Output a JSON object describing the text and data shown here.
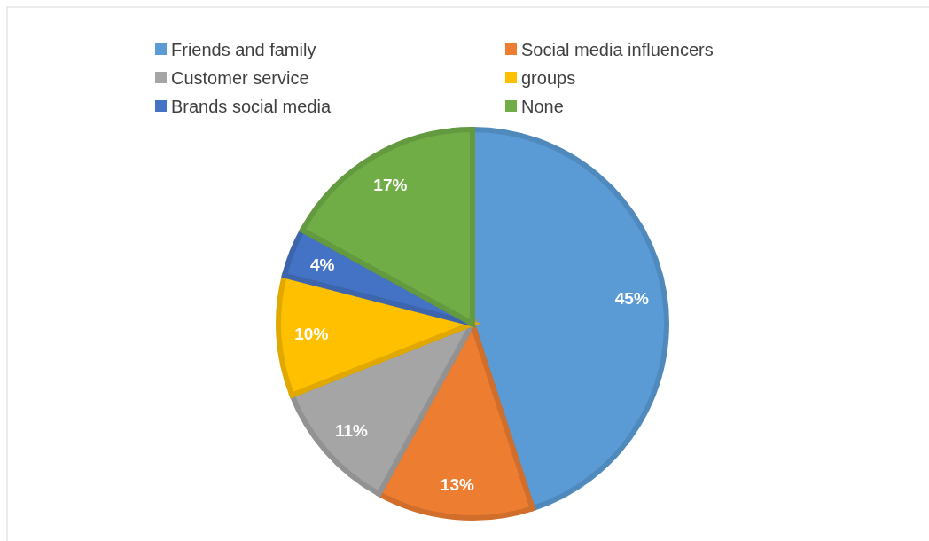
{
  "chart_data": {
    "type": "pie",
    "categories": [
      "Friends and family",
      "Social media influencers",
      "Customer service",
      "groups",
      "Brands social media",
      "None"
    ],
    "values": [
      45,
      13,
      11,
      10,
      4,
      17
    ],
    "colors": [
      "#5b9bd5",
      "#ed7d31",
      "#a5a5a5",
      "#ffc000",
      "#4472c4",
      "#70ad47"
    ],
    "value_labels": [
      "45%",
      "13%",
      "11%",
      "10%",
      "4%",
      "17%"
    ],
    "legend": "top"
  }
}
